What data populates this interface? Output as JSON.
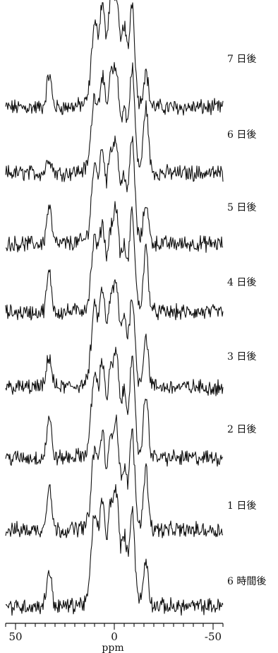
{
  "chart_data": {
    "type": "line",
    "xlabel": "ppm",
    "ylabel": "",
    "title": "",
    "xlim": [
      55,
      -55
    ],
    "x_reversed": true,
    "x_ticks": [
      50,
      0,
      -50
    ],
    "x_tick_labels": [
      "50",
      "0",
      "-50"
    ],
    "grid": false,
    "legend": "labels at right of each trace",
    "peaks_ppm": [
      33,
      10,
      6,
      2,
      -1,
      -5,
      -9,
      -16
    ],
    "series": [
      {
        "name": "7 日後",
        "peak_heights": [
          0.33,
          0.75,
          0.93,
          0.86,
          0.97,
          0.72,
          1.0,
          0.34
        ]
      },
      {
        "name": "6 日後",
        "peak_heights": [
          0.16,
          0.7,
          0.86,
          0.78,
          0.88,
          0.55,
          1.0,
          0.66
        ]
      },
      {
        "name": "5 日後",
        "peak_heights": [
          0.38,
          0.7,
          0.83,
          0.75,
          0.87,
          0.6,
          1.0,
          0.4
        ]
      },
      {
        "name": "4 日後",
        "peak_heights": [
          0.4,
          0.66,
          0.77,
          0.63,
          0.9,
          0.55,
          0.95,
          0.62
        ]
      },
      {
        "name": "3 日後",
        "peak_heights": [
          0.32,
          0.72,
          0.86,
          0.7,
          0.88,
          0.62,
          0.86,
          0.5
        ]
      },
      {
        "name": "2 日後",
        "peak_heights": [
          0.4,
          0.76,
          0.85,
          0.68,
          0.9,
          0.56,
          0.92,
          0.62
        ]
      },
      {
        "name": "1 日後",
        "peak_heights": [
          0.47,
          0.72,
          0.85,
          0.7,
          0.95,
          0.5,
          0.92,
          0.6
        ]
      },
      {
        "name": "6 時間後",
        "peak_heights": [
          0.37,
          0.85,
          0.92,
          0.82,
          1.0,
          0.6,
          0.92,
          0.44
        ]
      }
    ]
  }
}
